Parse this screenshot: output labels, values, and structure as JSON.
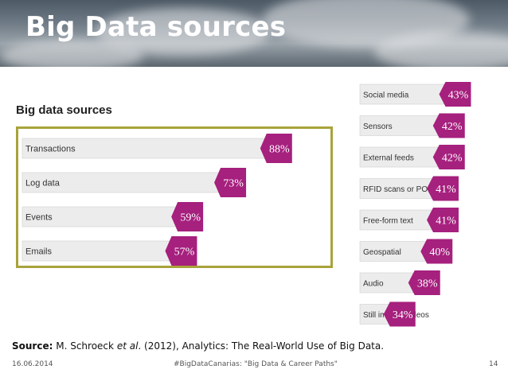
{
  "header": {
    "title": "Big Data sources"
  },
  "chart_data": [
    {
      "type": "bar",
      "orientation": "horizontal",
      "title": "Big data sources",
      "categories": [
        "Transactions",
        "Log data",
        "Events",
        "Emails"
      ],
      "values": [
        88,
        73,
        59,
        57
      ],
      "value_labels": [
        "88%",
        "73%",
        "59%",
        "57%"
      ],
      "xlim": [
        0,
        100
      ],
      "colors": {
        "bar": "#ececec",
        "label_bg": "#a6207e",
        "label_text": "#ffffff",
        "frame": "#a8a33a"
      }
    },
    {
      "type": "bar",
      "orientation": "horizontal",
      "title": "",
      "categories": [
        "Social media",
        "Sensors",
        "External feeds",
        "RFID scans or POS data",
        "Free-form text",
        "Geospatial",
        "Audio",
        "Still images/videos"
      ],
      "values": [
        43,
        42,
        42,
        41,
        41,
        40,
        38,
        34
      ],
      "value_labels": [
        "43%",
        "42%",
        "42%",
        "41%",
        "41%",
        "40%",
        "38%",
        "34%"
      ],
      "xlim": [
        0,
        45
      ],
      "colors": {
        "bar": "#ececec",
        "label_bg": "#a6207e",
        "label_text": "#ffffff"
      }
    }
  ],
  "source": {
    "label": "Source:",
    "authors": "M. Schroeck",
    "etal": "et al",
    "rest": ". (2012), Analytics: The Real-World Use of Big Data."
  },
  "footer": {
    "date": "16.06.2014",
    "event": "#BigDataCanarias: \"Big Data & Career Paths\"",
    "page": "14"
  }
}
